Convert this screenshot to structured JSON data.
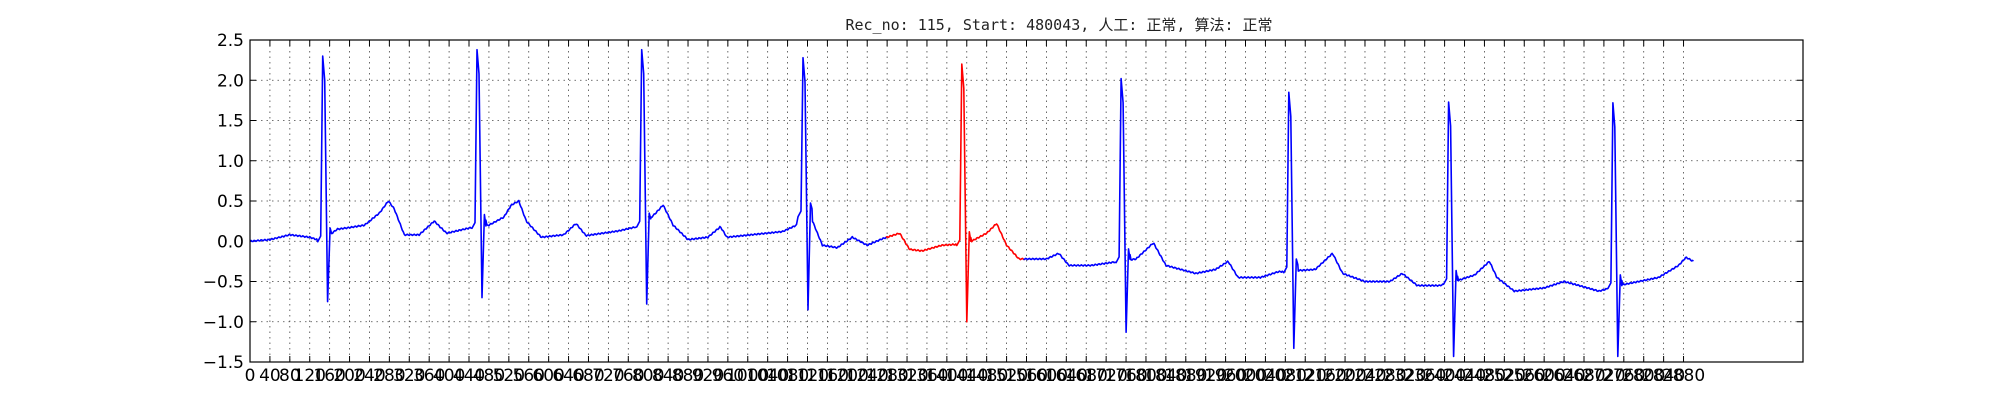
{
  "chart_data": {
    "type": "line",
    "title": "Rec_no: 115, Start: 480043, 人工: 正常, 算法: 正常",
    "xlabel": "",
    "ylabel": "",
    "xlim": [
      0,
      3120
    ],
    "ylim": [
      -1.5,
      2.5
    ],
    "x_tick_step": 40,
    "x_tick_max": 2880,
    "x_ticks": [
      "0",
      "40",
      "80",
      "120",
      "160",
      "200",
      "240",
      "280",
      "320",
      "360",
      "400",
      "440",
      "480",
      "520",
      "560",
      "600",
      "640",
      "680",
      "720",
      "760",
      "800",
      "840",
      "880",
      "920",
      "960",
      "1000",
      "1040",
      "1080",
      "1120",
      "1160",
      "1200",
      "1240",
      "1280",
      "1320",
      "1360",
      "1400",
      "1440",
      "1480",
      "1520",
      "1560",
      "1600",
      "1640",
      "1680",
      "1720",
      "1760",
      "1800",
      "1840",
      "1880",
      "1920",
      "1960",
      "2000",
      "2040",
      "2080",
      "2120",
      "2160",
      "2200",
      "2240",
      "2280",
      "2320",
      "2360",
      "2400",
      "2440",
      "2480",
      "2520",
      "2560",
      "2600",
      "2640",
      "2680",
      "2720",
      "2760",
      "2800",
      "2840",
      "2880"
    ],
    "y_ticks": [
      "2.5",
      "2.0",
      "1.5",
      "1.0",
      "0.5",
      "0.0",
      "−0.5",
      "−1.0",
      "−1.5"
    ],
    "grid": true,
    "series_colors": {
      "normal": "#0000ff",
      "highlight": "#ff0000"
    },
    "baseline": [
      [
        0,
        0.0
      ],
      [
        40,
        0.02
      ],
      [
        80,
        0.08
      ],
      [
        120,
        0.05
      ],
      [
        145,
        0.0
      ],
      [
        175,
        0.15
      ],
      [
        200,
        0.17
      ],
      [
        230,
        0.2
      ],
      [
        260,
        0.35
      ],
      [
        278,
        0.5
      ],
      [
        290,
        0.4
      ],
      [
        310,
        0.08
      ],
      [
        340,
        0.08
      ],
      [
        370,
        0.25
      ],
      [
        395,
        0.1
      ],
      [
        445,
        0.17
      ],
      [
        480,
        0.2
      ],
      [
        510,
        0.3
      ],
      [
        525,
        0.45
      ],
      [
        540,
        0.5
      ],
      [
        555,
        0.25
      ],
      [
        585,
        0.05
      ],
      [
        630,
        0.08
      ],
      [
        655,
        0.22
      ],
      [
        675,
        0.07
      ],
      [
        742,
        0.13
      ],
      [
        790,
        0.2
      ],
      [
        815,
        0.35
      ],
      [
        830,
        0.45
      ],
      [
        850,
        0.2
      ],
      [
        880,
        0.02
      ],
      [
        920,
        0.05
      ],
      [
        945,
        0.18
      ],
      [
        958,
        0.05
      ],
      [
        1070,
        0.12
      ],
      [
        1105,
        0.22
      ],
      [
        1115,
        0.35
      ],
      [
        1130,
        0.25
      ],
      [
        1150,
        -0.05
      ],
      [
        1180,
        -0.08
      ],
      [
        1210,
        0.05
      ],
      [
        1240,
        -0.05
      ],
      [
        1270,
        0.03
      ],
      [
        1305,
        0.1
      ],
      [
        1325,
        -0.1
      ],
      [
        1350,
        -0.12
      ],
      [
        1390,
        -0.05
      ],
      [
        1440,
        -0.03
      ],
      [
        1480,
        0.1
      ],
      [
        1500,
        0.22
      ],
      [
        1520,
        -0.05
      ],
      [
        1545,
        -0.22
      ],
      [
        1600,
        -0.22
      ],
      [
        1625,
        -0.15
      ],
      [
        1645,
        -0.3
      ],
      [
        1690,
        -0.3
      ],
      [
        1780,
        -0.22
      ],
      [
        1815,
        -0.02
      ],
      [
        1840,
        -0.3
      ],
      [
        1900,
        -0.4
      ],
      [
        1940,
        -0.35
      ],
      [
        1965,
        -0.25
      ],
      [
        1985,
        -0.45
      ],
      [
        2030,
        -0.45
      ],
      [
        2065,
        -0.38
      ],
      [
        2140,
        -0.35
      ],
      [
        2175,
        -0.15
      ],
      [
        2195,
        -0.4
      ],
      [
        2240,
        -0.5
      ],
      [
        2290,
        -0.5
      ],
      [
        2315,
        -0.4
      ],
      [
        2345,
        -0.55
      ],
      [
        2390,
        -0.55
      ],
      [
        2430,
        -0.48
      ],
      [
        2460,
        -0.42
      ],
      [
        2490,
        -0.25
      ],
      [
        2505,
        -0.45
      ],
      [
        2540,
        -0.62
      ],
      [
        2600,
        -0.58
      ],
      [
        2640,
        -0.5
      ],
      [
        2670,
        -0.55
      ],
      [
        2710,
        -0.62
      ],
      [
        2750,
        -0.55
      ],
      [
        2790,
        -0.5
      ],
      [
        2830,
        -0.45
      ],
      [
        2870,
        -0.3
      ],
      [
        2885,
        -0.2
      ],
      [
        2900,
        -0.25
      ]
    ],
    "qrs": [
      {
        "x": 148,
        "peak": 2.3,
        "trough": -0.75
      },
      {
        "x": 458,
        "peak": 2.38,
        "trough": -0.7
      },
      {
        "x": 789,
        "peak": 2.38,
        "trough": -0.78
      },
      {
        "x": 1113,
        "peak": 2.28,
        "trough": -0.85
      },
      {
        "x": 1432,
        "peak": 2.2,
        "trough": -1.0
      },
      {
        "x": 1752,
        "peak": 2.02,
        "trough": -1.13
      },
      {
        "x": 2089,
        "peak": 1.85,
        "trough": -1.33
      },
      {
        "x": 2410,
        "peak": 1.73,
        "trough": -1.43
      },
      {
        "x": 2740,
        "peak": 1.72,
        "trough": -1.43
      }
    ],
    "highlight_range": [
      1280,
      1555
    ]
  }
}
